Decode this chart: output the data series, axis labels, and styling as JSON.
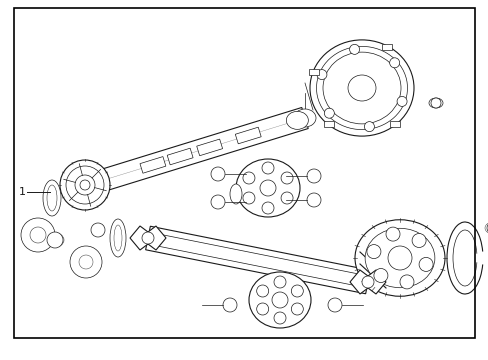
{
  "bg_color": "#ffffff",
  "border_color": "#000000",
  "line_color": "#1a1a1a",
  "fig_width": 4.89,
  "fig_height": 3.6,
  "dpi": 100,
  "lw_main": 0.8,
  "lw_thin": 0.5,
  "lw_border": 1.2
}
